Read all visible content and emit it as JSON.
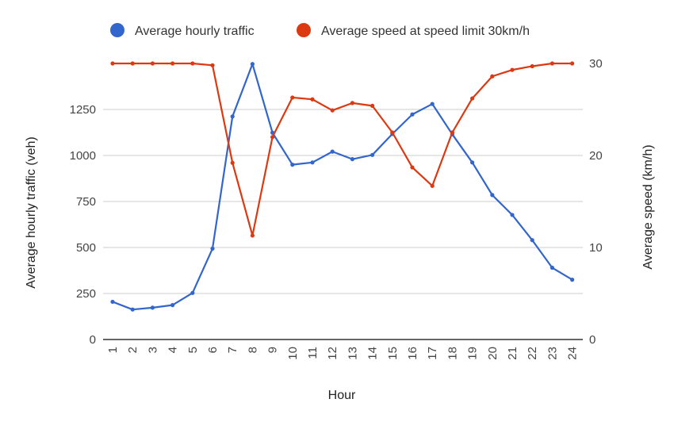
{
  "chart_data": {
    "type": "line",
    "x": [
      "1",
      "2",
      "3",
      "4",
      "5",
      "6",
      "7",
      "8",
      "9",
      "10",
      "11",
      "12",
      "13",
      "14",
      "15",
      "16",
      "17",
      "18",
      "19",
      "20",
      "21",
      "22",
      "23",
      "24"
    ],
    "xlabel": "Hour",
    "y_left": {
      "label": "Average hourly traffic (veh)",
      "lim": [
        0,
        1500
      ],
      "ticks": [
        "0",
        "250",
        "500",
        "750",
        "1000",
        "1250"
      ],
      "tick_values": [
        0,
        250,
        500,
        750,
        1000,
        1250
      ]
    },
    "y_right": {
      "label": "Average speed (km/h)",
      "lim": [
        0,
        30
      ],
      "ticks": [
        "0",
        "10",
        "20",
        "30"
      ],
      "tick_values": [
        0,
        10,
        20,
        30
      ]
    },
    "grid": true,
    "legend_position": "top",
    "series": [
      {
        "name": "Average hourly traffic",
        "axis": "left",
        "color": "#3366cc",
        "values": [
          205,
          163,
          173,
          187,
          253,
          494,
          1212,
          1497,
          1124,
          950,
          962,
          1021,
          980,
          1003,
          1117,
          1223,
          1280,
          1115,
          962,
          785,
          677,
          540,
          390,
          325
        ]
      },
      {
        "name": "Average speed at speed limit 30km/h",
        "axis": "right",
        "color": "#dc3912",
        "values": [
          30,
          30,
          30,
          30,
          30,
          29.8,
          19.2,
          11.3,
          22,
          26.3,
          26.1,
          24.9,
          25.7,
          25.4,
          22.5,
          18.7,
          16.7,
          22.5,
          26.2,
          28.6,
          29.3,
          29.7,
          30,
          30
        ]
      }
    ]
  }
}
